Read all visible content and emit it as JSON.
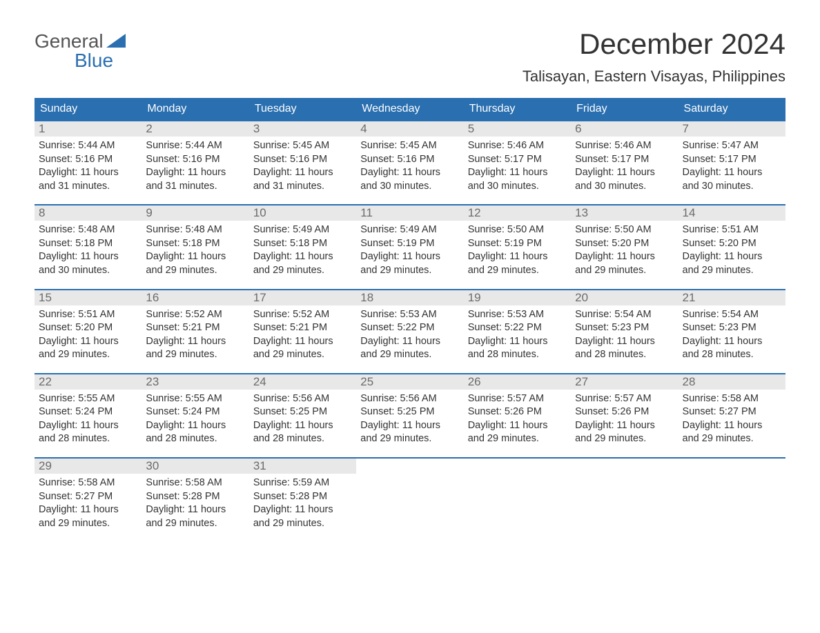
{
  "logo": {
    "word1": "General",
    "word2": "Blue"
  },
  "title": "December 2024",
  "location": "Talisayan, Eastern Visayas, Philippines",
  "colors": {
    "brand_blue": "#2a6fb0",
    "header_text": "#ffffff",
    "daynum_bg": "#e8e8e8",
    "daynum_text": "#6b6b6b",
    "body_text": "#333333",
    "logo_gray": "#555555"
  },
  "dow": [
    "Sunday",
    "Monday",
    "Tuesday",
    "Wednesday",
    "Thursday",
    "Friday",
    "Saturday"
  ],
  "weeks": [
    [
      {
        "n": "1",
        "sr": "Sunrise: 5:44 AM",
        "ss": "Sunset: 5:16 PM",
        "d1": "Daylight: 11 hours",
        "d2": "and 31 minutes."
      },
      {
        "n": "2",
        "sr": "Sunrise: 5:44 AM",
        "ss": "Sunset: 5:16 PM",
        "d1": "Daylight: 11 hours",
        "d2": "and 31 minutes."
      },
      {
        "n": "3",
        "sr": "Sunrise: 5:45 AM",
        "ss": "Sunset: 5:16 PM",
        "d1": "Daylight: 11 hours",
        "d2": "and 31 minutes."
      },
      {
        "n": "4",
        "sr": "Sunrise: 5:45 AM",
        "ss": "Sunset: 5:16 PM",
        "d1": "Daylight: 11 hours",
        "d2": "and 30 minutes."
      },
      {
        "n": "5",
        "sr": "Sunrise: 5:46 AM",
        "ss": "Sunset: 5:17 PM",
        "d1": "Daylight: 11 hours",
        "d2": "and 30 minutes."
      },
      {
        "n": "6",
        "sr": "Sunrise: 5:46 AM",
        "ss": "Sunset: 5:17 PM",
        "d1": "Daylight: 11 hours",
        "d2": "and 30 minutes."
      },
      {
        "n": "7",
        "sr": "Sunrise: 5:47 AM",
        "ss": "Sunset: 5:17 PM",
        "d1": "Daylight: 11 hours",
        "d2": "and 30 minutes."
      }
    ],
    [
      {
        "n": "8",
        "sr": "Sunrise: 5:48 AM",
        "ss": "Sunset: 5:18 PM",
        "d1": "Daylight: 11 hours",
        "d2": "and 30 minutes."
      },
      {
        "n": "9",
        "sr": "Sunrise: 5:48 AM",
        "ss": "Sunset: 5:18 PM",
        "d1": "Daylight: 11 hours",
        "d2": "and 29 minutes."
      },
      {
        "n": "10",
        "sr": "Sunrise: 5:49 AM",
        "ss": "Sunset: 5:18 PM",
        "d1": "Daylight: 11 hours",
        "d2": "and 29 minutes."
      },
      {
        "n": "11",
        "sr": "Sunrise: 5:49 AM",
        "ss": "Sunset: 5:19 PM",
        "d1": "Daylight: 11 hours",
        "d2": "and 29 minutes."
      },
      {
        "n": "12",
        "sr": "Sunrise: 5:50 AM",
        "ss": "Sunset: 5:19 PM",
        "d1": "Daylight: 11 hours",
        "d2": "and 29 minutes."
      },
      {
        "n": "13",
        "sr": "Sunrise: 5:50 AM",
        "ss": "Sunset: 5:20 PM",
        "d1": "Daylight: 11 hours",
        "d2": "and 29 minutes."
      },
      {
        "n": "14",
        "sr": "Sunrise: 5:51 AM",
        "ss": "Sunset: 5:20 PM",
        "d1": "Daylight: 11 hours",
        "d2": "and 29 minutes."
      }
    ],
    [
      {
        "n": "15",
        "sr": "Sunrise: 5:51 AM",
        "ss": "Sunset: 5:20 PM",
        "d1": "Daylight: 11 hours",
        "d2": "and 29 minutes."
      },
      {
        "n": "16",
        "sr": "Sunrise: 5:52 AM",
        "ss": "Sunset: 5:21 PM",
        "d1": "Daylight: 11 hours",
        "d2": "and 29 minutes."
      },
      {
        "n": "17",
        "sr": "Sunrise: 5:52 AM",
        "ss": "Sunset: 5:21 PM",
        "d1": "Daylight: 11 hours",
        "d2": "and 29 minutes."
      },
      {
        "n": "18",
        "sr": "Sunrise: 5:53 AM",
        "ss": "Sunset: 5:22 PM",
        "d1": "Daylight: 11 hours",
        "d2": "and 29 minutes."
      },
      {
        "n": "19",
        "sr": "Sunrise: 5:53 AM",
        "ss": "Sunset: 5:22 PM",
        "d1": "Daylight: 11 hours",
        "d2": "and 28 minutes."
      },
      {
        "n": "20",
        "sr": "Sunrise: 5:54 AM",
        "ss": "Sunset: 5:23 PM",
        "d1": "Daylight: 11 hours",
        "d2": "and 28 minutes."
      },
      {
        "n": "21",
        "sr": "Sunrise: 5:54 AM",
        "ss": "Sunset: 5:23 PM",
        "d1": "Daylight: 11 hours",
        "d2": "and 28 minutes."
      }
    ],
    [
      {
        "n": "22",
        "sr": "Sunrise: 5:55 AM",
        "ss": "Sunset: 5:24 PM",
        "d1": "Daylight: 11 hours",
        "d2": "and 28 minutes."
      },
      {
        "n": "23",
        "sr": "Sunrise: 5:55 AM",
        "ss": "Sunset: 5:24 PM",
        "d1": "Daylight: 11 hours",
        "d2": "and 28 minutes."
      },
      {
        "n": "24",
        "sr": "Sunrise: 5:56 AM",
        "ss": "Sunset: 5:25 PM",
        "d1": "Daylight: 11 hours",
        "d2": "and 28 minutes."
      },
      {
        "n": "25",
        "sr": "Sunrise: 5:56 AM",
        "ss": "Sunset: 5:25 PM",
        "d1": "Daylight: 11 hours",
        "d2": "and 29 minutes."
      },
      {
        "n": "26",
        "sr": "Sunrise: 5:57 AM",
        "ss": "Sunset: 5:26 PM",
        "d1": "Daylight: 11 hours",
        "d2": "and 29 minutes."
      },
      {
        "n": "27",
        "sr": "Sunrise: 5:57 AM",
        "ss": "Sunset: 5:26 PM",
        "d1": "Daylight: 11 hours",
        "d2": "and 29 minutes."
      },
      {
        "n": "28",
        "sr": "Sunrise: 5:58 AM",
        "ss": "Sunset: 5:27 PM",
        "d1": "Daylight: 11 hours",
        "d2": "and 29 minutes."
      }
    ],
    [
      {
        "n": "29",
        "sr": "Sunrise: 5:58 AM",
        "ss": "Sunset: 5:27 PM",
        "d1": "Daylight: 11 hours",
        "d2": "and 29 minutes."
      },
      {
        "n": "30",
        "sr": "Sunrise: 5:58 AM",
        "ss": "Sunset: 5:28 PM",
        "d1": "Daylight: 11 hours",
        "d2": "and 29 minutes."
      },
      {
        "n": "31",
        "sr": "Sunrise: 5:59 AM",
        "ss": "Sunset: 5:28 PM",
        "d1": "Daylight: 11 hours",
        "d2": "and 29 minutes."
      },
      null,
      null,
      null,
      null
    ]
  ]
}
